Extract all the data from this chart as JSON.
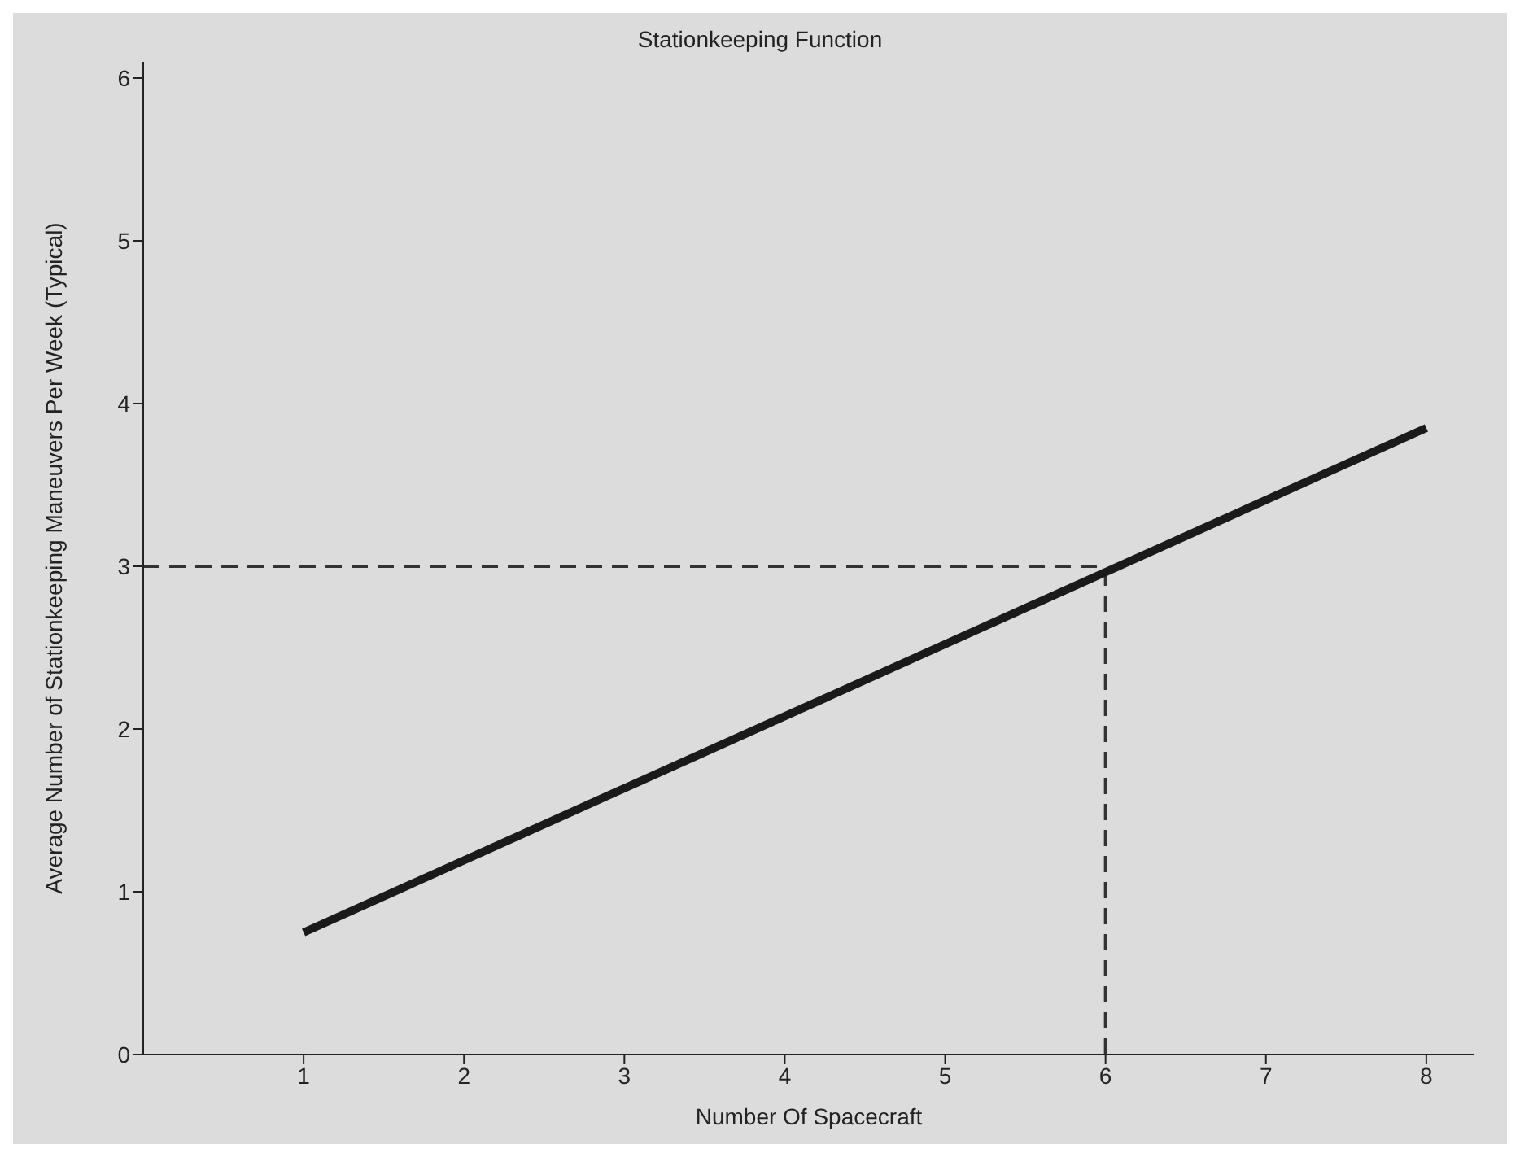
{
  "chart_data": {
    "type": "line",
    "title": "Stationkeeping Function",
    "xlabel": "Number Of Spacecraft",
    "ylabel": "Average Number of Stationkeeping Maneuvers Per Week (Typical)",
    "x": [
      1,
      8
    ],
    "series": [
      {
        "color": "#1a1a1a",
        "values": [
          0.75,
          3.85
        ]
      }
    ],
    "xlim": [
      0,
      8.3
    ],
    "xticks": [
      1,
      2,
      3,
      4,
      5,
      6,
      7,
      8
    ],
    "ylim": [
      0,
      6.1
    ],
    "yticks": [
      0,
      1,
      2,
      3,
      4,
      5,
      6
    ],
    "ref_lines": [
      {
        "axis": "y",
        "value": 3,
        "line_style": "dashed",
        "color": "#333333"
      },
      {
        "axis": "x",
        "value": 6,
        "line_style": "dashed",
        "color": "#333333"
      }
    ],
    "grid": false,
    "legend": false,
    "marker": "none",
    "line_style": "solid"
  }
}
